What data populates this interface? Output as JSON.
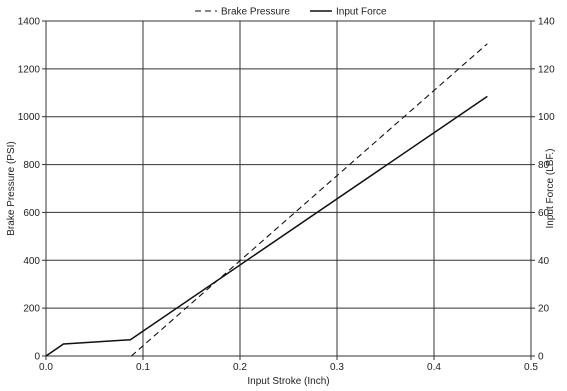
{
  "chart_data": {
    "type": "line",
    "title": "",
    "xlabel": "Input Stroke (Inch)",
    "ylabel_left": "Brake Pressure (PSI)",
    "ylabel_right": "Input Force (LBF.)",
    "xlim": [
      0,
      0.5
    ],
    "ylim_left": [
      0,
      1400
    ],
    "ylim_right": [
      0,
      140
    ],
    "x_ticks": [
      "0.0",
      "0.1",
      "0.2",
      "0.3",
      "0.4",
      "0.5"
    ],
    "y_left_ticks": [
      "0",
      "200",
      "400",
      "600",
      "800",
      "1000",
      "1200",
      "1400"
    ],
    "y_right_ticks": [
      "0",
      "20",
      "40",
      "60",
      "80",
      "100",
      "120",
      "140"
    ],
    "grid": true,
    "legend_position": "top-center",
    "series": [
      {
        "name": "Brake Pressure",
        "axis": "left",
        "style": "dashed",
        "color": "#111111",
        "points": [
          [
            0.088,
            0
          ],
          [
            0.455,
            1305
          ]
        ]
      },
      {
        "name": "Input Force",
        "axis": "right",
        "style": "solid",
        "color": "#111111",
        "points": [
          [
            0,
            0
          ],
          [
            0.018,
            5
          ],
          [
            0.087,
            6.8
          ],
          [
            0.455,
            108.5
          ]
        ]
      }
    ]
  }
}
